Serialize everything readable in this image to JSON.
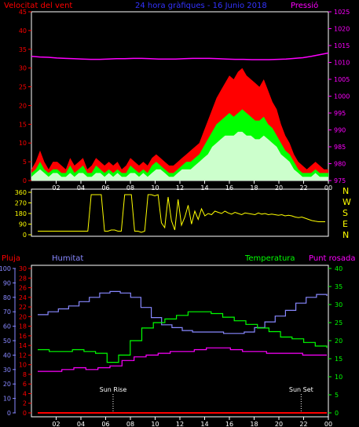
{
  "chart_data": [
    {
      "type": "line",
      "title": "24 hora gràfiques - 16 Junio 2018",
      "ylabel_left": "Velocitat del vent",
      "ylabel_right": "Pressió",
      "x_ticks": [
        "02",
        "04",
        "06",
        "08",
        "10",
        "12",
        "14",
        "16",
        "18",
        "20",
        "22",
        "00"
      ],
      "y_left_ticks": [
        0,
        5,
        10,
        15,
        20,
        25,
        30,
        35,
        40,
        45
      ],
      "y_left_range": [
        0,
        45
      ],
      "y_right_ticks": [
        975,
        980,
        985,
        990,
        995,
        1000,
        1005,
        1010,
        1015,
        1020,
        1025
      ],
      "y_right_range": [
        975,
        1025
      ],
      "colors": {
        "gust": "#ff0000",
        "speed": "#00ff00",
        "average": "#ccffcc",
        "pressure": "#ff00ff",
        "left_axis": "#ff0000",
        "right_axis": "#ff00ff",
        "title": "#3333ff"
      },
      "series": [
        {
          "key": "gust",
          "values": [
            3,
            5,
            8,
            5,
            3,
            5,
            5,
            4,
            3,
            6,
            4,
            5,
            6,
            3,
            4,
            6,
            5,
            4,
            5,
            4,
            5,
            3,
            4,
            6,
            5,
            4,
            5,
            4,
            6,
            7,
            6,
            5,
            4,
            4,
            5,
            6,
            7,
            8,
            9,
            10,
            13,
            16,
            19,
            22,
            24,
            26,
            28,
            27,
            29,
            30,
            28,
            27,
            26,
            25,
            27,
            24,
            21,
            19,
            15,
            12,
            10,
            7,
            5,
            4,
            3,
            4,
            5,
            4,
            3,
            3
          ]
        },
        {
          "key": "speed",
          "values": [
            2,
            3,
            5,
            3,
            2,
            3,
            3,
            2,
            2,
            4,
            2,
            3,
            4,
            2,
            2,
            4,
            3,
            2,
            3,
            2,
            3,
            2,
            2,
            4,
            3,
            2,
            3,
            2,
            4,
            5,
            4,
            3,
            2,
            2,
            3,
            4,
            5,
            5,
            6,
            7,
            9,
            11,
            13,
            15,
            16,
            17,
            18,
            17,
            18,
            19,
            18,
            17,
            16,
            16,
            17,
            15,
            14,
            12,
            10,
            8,
            7,
            5,
            3,
            2,
            2,
            2,
            3,
            2,
            2,
            2
          ]
        },
        {
          "key": "average",
          "values": [
            1,
            2,
            3,
            2,
            1,
            2,
            2,
            1,
            1,
            2,
            1,
            2,
            2,
            1,
            1,
            2,
            2,
            1,
            2,
            1,
            2,
            1,
            1,
            2,
            2,
            1,
            2,
            1,
            2,
            3,
            3,
            2,
            1,
            1,
            2,
            3,
            3,
            3,
            4,
            5,
            6,
            7,
            9,
            10,
            11,
            12,
            12,
            12,
            13,
            13,
            12,
            12,
            11,
            11,
            12,
            11,
            10,
            9,
            7,
            6,
            5,
            3,
            2,
            1,
            1,
            1,
            2,
            1,
            1,
            1
          ]
        },
        {
          "key": "pressure",
          "values": [
            1011.8,
            1011.6,
            1011.5,
            1011.3,
            1011.2,
            1011.1,
            1011.0,
            1010.9,
            1010.9,
            1011.0,
            1011.1,
            1011.1,
            1011.2,
            1011.2,
            1011.1,
            1011.0,
            1011.0,
            1011.0,
            1011.1,
            1011.2,
            1011.2,
            1011.2,
            1011.1,
            1011.0,
            1010.9,
            1010.9,
            1010.8,
            1010.8,
            1010.8,
            1010.9,
            1011.0,
            1011.2,
            1011.4,
            1011.8,
            1012.3,
            1012.8
          ]
        }
      ]
    },
    {
      "type": "line",
      "right_labels": [
        "N",
        "W",
        "S",
        "E",
        "N"
      ],
      "y_ticks": [
        0,
        90,
        180,
        270,
        360
      ],
      "y_range": [
        0,
        360
      ],
      "x_ticks": [
        "02",
        "04",
        "06",
        "08",
        "10",
        "12",
        "14",
        "16",
        "18",
        "20",
        "22",
        "00"
      ],
      "colors": {
        "direction": "#ffff00",
        "axis": "#ffff00"
      },
      "series": [
        {
          "key": "direction",
          "values": [
            30,
            30,
            30,
            30,
            30,
            30,
            30,
            30,
            30,
            30,
            30,
            30,
            30,
            30,
            30,
            30,
            340,
            340,
            340,
            340,
            30,
            30,
            40,
            40,
            30,
            30,
            340,
            340,
            340,
            30,
            30,
            20,
            30,
            340,
            340,
            330,
            340,
            100,
            60,
            320,
            120,
            40,
            300,
            80,
            150,
            250,
            90,
            200,
            130,
            220,
            160,
            180,
            170,
            200,
            190,
            180,
            200,
            185,
            175,
            190,
            180,
            170,
            185,
            180,
            175,
            170,
            185,
            175,
            180,
            170,
            175,
            170,
            165,
            170,
            160,
            165,
            160,
            150,
            145,
            150,
            140,
            130,
            120,
            115,
            110,
            110,
            110
          ]
        }
      ]
    },
    {
      "type": "line",
      "labels": {
        "rain": "Pluja",
        "humidity": "Humitat",
        "temperature": "Temperatura",
        "dewpoint": "Punt rosada"
      },
      "x_ticks": [
        "02",
        "04",
        "06",
        "08",
        "10",
        "12",
        "14",
        "16",
        "18",
        "20",
        "22",
        "00"
      ],
      "annotations": [
        {
          "text": "Sun Rise",
          "x_hour": 6.6
        },
        {
          "text": "Sun Set",
          "x_hour": 21.8
        }
      ],
      "humidity_ticks": [
        0,
        10,
        20,
        30,
        40,
        50,
        60,
        70,
        80,
        90,
        100
      ],
      "humidity_range": [
        0,
        100
      ],
      "rain_ticks": [
        0,
        2,
        4,
        6,
        8,
        10,
        12,
        14,
        16,
        18,
        20,
        22,
        24,
        26,
        28,
        30
      ],
      "rain_range": [
        0,
        30
      ],
      "temp_ticks": [
        0,
        5,
        10,
        15,
        20,
        25,
        30,
        35,
        40
      ],
      "temp_range": [
        0,
        40
      ],
      "colors": {
        "rain": "#ff0000",
        "humidity": "#8888ff",
        "temperature": "#00ff00",
        "dewpoint": "#ff00ff",
        "rain_axis": "#ff0000",
        "humidity_axis": "#8888ff",
        "temp_axis": "#00ff00",
        "dewpoint_label": "#ff00ff"
      },
      "series": [
        {
          "key": "humidity",
          "values": [
            68,
            70,
            72,
            74,
            77,
            80,
            83,
            84,
            83,
            80,
            73,
            66,
            61,
            59,
            57,
            56,
            56,
            56,
            55,
            55,
            56,
            59,
            63,
            67,
            71,
            76,
            80,
            82,
            81
          ]
        },
        {
          "key": "temperature",
          "values": [
            17.5,
            17.0,
            17.0,
            17.5,
            17.0,
            16.5,
            14.0,
            16.0,
            20.0,
            23.5,
            25.0,
            26.0,
            27.0,
            28.0,
            28.0,
            27.5,
            26.5,
            25.5,
            24.5,
            23.5,
            22.5,
            21.0,
            20.5,
            19.5,
            18.5,
            18.0
          ]
        },
        {
          "key": "dewpoint",
          "values": [
            11.5,
            11.5,
            12.0,
            12.5,
            12.0,
            12.5,
            13.0,
            14.5,
            15.5,
            16.0,
            16.5,
            17.0,
            17.0,
            17.5,
            18.0,
            18.0,
            17.5,
            17.0,
            17.0,
            16.5,
            16.5,
            16.5,
            16.0,
            16.0,
            16.0
          ]
        },
        {
          "key": "rain",
          "values": [
            0,
            0,
            0,
            0,
            0,
            0,
            0,
            0,
            0,
            0,
            0,
            0,
            0,
            0,
            0,
            0,
            0,
            0,
            0,
            0,
            0,
            0,
            0,
            0,
            0
          ]
        }
      ]
    }
  ]
}
